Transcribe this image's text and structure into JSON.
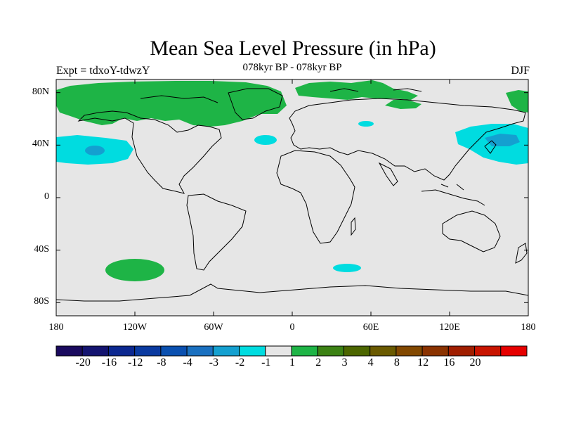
{
  "title": "Mean Sea Level Pressure (in hPa)",
  "left_label": "Expt = tdxoY-tdwzY",
  "center_label": "078kyr BP - 078kyr BP",
  "right_label": "DJF",
  "map": {
    "background_color": "#e6e6e6",
    "lat_ticks": [
      {
        "label": "80N",
        "lat": 80
      },
      {
        "label": "40N",
        "lat": 40
      },
      {
        "label": "0",
        "lat": 0
      },
      {
        "label": "40S",
        "lat": -40
      },
      {
        "label": "80S",
        "lat": -80
      }
    ],
    "lon_ticks": [
      {
        "label": "180",
        "lon": -180
      },
      {
        "label": "120W",
        "lon": -120
      },
      {
        "label": "60W",
        "lon": -60
      },
      {
        "label": "0",
        "lon": 0
      },
      {
        "label": "60E",
        "lon": 60
      },
      {
        "label": "120E",
        "lon": 120
      },
      {
        "label": "180",
        "lon": 180
      }
    ]
  },
  "colorbar": {
    "colors": [
      "#1a0a5e",
      "#141470",
      "#0c2890",
      "#0a3aa0",
      "#0a50b0",
      "#1a70c0",
      "#14a0d0",
      "#00dce0",
      "#e6e6e6",
      "#1eb446",
      "#3c8214",
      "#4c6600",
      "#6a5a00",
      "#824800",
      "#8a3200",
      "#a01e00",
      "#c81400",
      "#e60000"
    ],
    "labels": [
      "-20",
      "-16",
      "-12",
      "-8",
      "-4",
      "-3",
      "-2",
      "-1",
      "1",
      "2",
      "3",
      "4",
      "8",
      "12",
      "16",
      "20"
    ]
  }
}
